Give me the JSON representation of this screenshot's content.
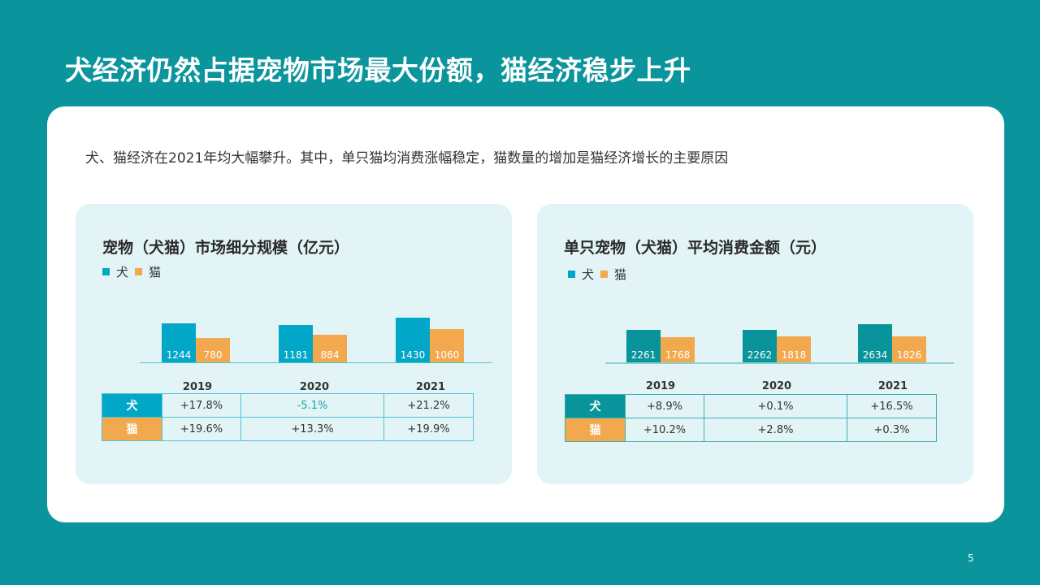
{
  "slide": {
    "title": "犬经济仍然占据宠物市场最大份额，猫经济稳步上升",
    "subtitle": "犬、猫经济在2021年均大幅攀升。其中，单只猫均消费涨幅稳定，猫数量的增加是猫经济增长的主要原因",
    "page_number": "5"
  },
  "colors": {
    "background": "#0a949c",
    "dog_left": "#02a6c7",
    "dog_right": "#09939a",
    "cat": "#f2a94e",
    "negative_text": "#1aa3a8"
  },
  "chart_data": [
    {
      "type": "bar",
      "title": "宠物（犬猫）市场细分规模（亿元）",
      "categories": [
        "2019",
        "2020",
        "2021"
      ],
      "series": [
        {
          "name": "犬",
          "values": [
            1244,
            1181,
            1430
          ]
        },
        {
          "name": "猫",
          "values": [
            780,
            884,
            1060
          ]
        }
      ],
      "legend": [
        "犬",
        "猫"
      ],
      "legend_position": "top-left",
      "xlabel": "",
      "ylabel": "",
      "grid": false,
      "growth_table": {
        "columns": [
          "2019",
          "2020",
          "2021"
        ],
        "rows": [
          {
            "label": "犬",
            "values": [
              "+17.8%",
              "-5.1%",
              "+21.2%"
            ]
          },
          {
            "label": "猫",
            "values": [
              "+19.6%",
              "+13.3%",
              "+19.9%"
            ]
          }
        ]
      }
    },
    {
      "type": "bar",
      "title": "单只宠物（犬猫）平均消费金额（元）",
      "categories": [
        "2019",
        "2020",
        "2021"
      ],
      "series": [
        {
          "name": "犬",
          "values": [
            2261,
            2262,
            2634
          ]
        },
        {
          "name": "猫",
          "values": [
            1768,
            1818,
            1826
          ]
        }
      ],
      "legend": [
        "犬",
        "猫"
      ],
      "legend_position": "top-left",
      "xlabel": "",
      "ylabel": "",
      "grid": false,
      "growth_table": {
        "columns": [
          "2019",
          "2020",
          "2021"
        ],
        "rows": [
          {
            "label": "犬",
            "values": [
              "+8.9%",
              "+0.1%",
              "+16.5%"
            ]
          },
          {
            "label": "猫",
            "values": [
              "+10.2%",
              "+2.8%",
              "+0.3%"
            ]
          }
        ]
      }
    }
  ]
}
